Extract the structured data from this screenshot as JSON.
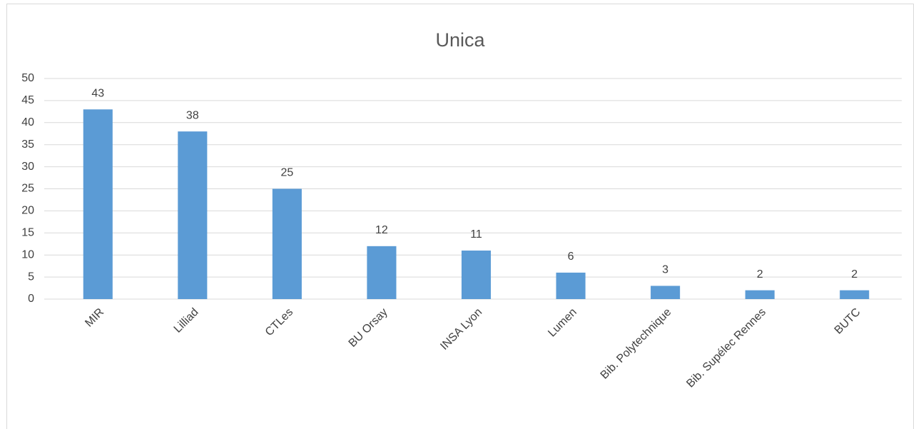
{
  "chart_data": {
    "type": "bar",
    "title": "Unica",
    "categories": [
      "MIR",
      "Lilliad",
      "CTLes",
      "BU Orsay",
      "INSA Lyon",
      "Lumen",
      "Bib. Polytechnique",
      "Bib. Supélec Rennes",
      "BUTC"
    ],
    "values": [
      43,
      38,
      25,
      12,
      11,
      6,
      3,
      2,
      2
    ],
    "color": "#5b9bd5",
    "ylim": [
      0,
      50
    ],
    "yticks": [
      0,
      5,
      10,
      15,
      20,
      25,
      30,
      35,
      40,
      45,
      50
    ],
    "grid": true
  }
}
